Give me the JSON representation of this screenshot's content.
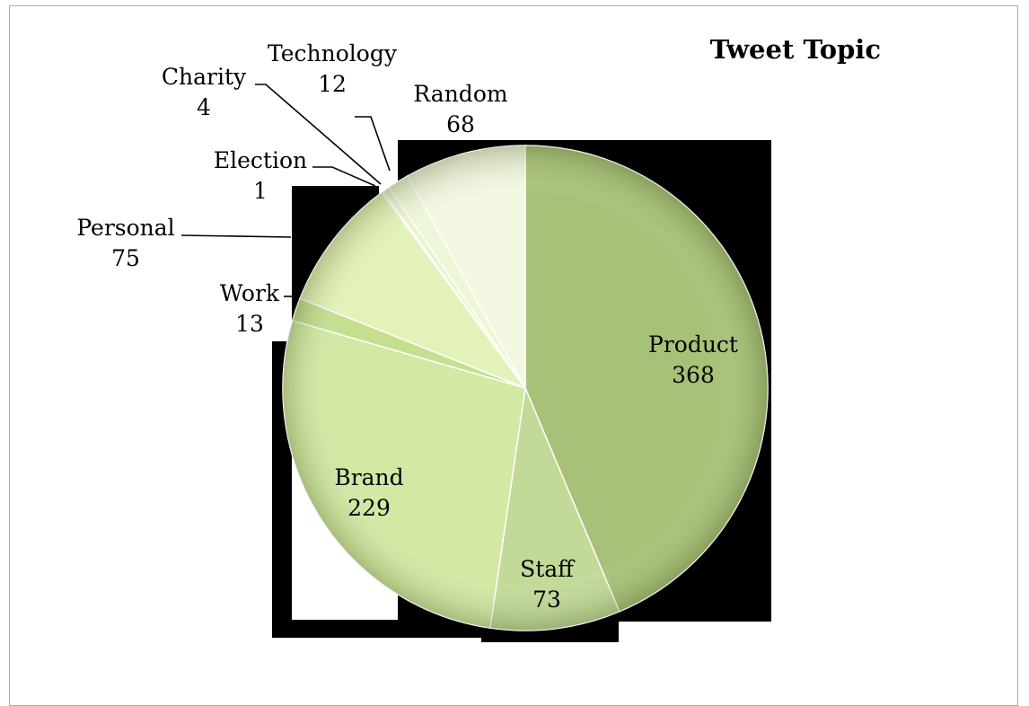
{
  "chart_data": {
    "type": "pie",
    "title": "Tweet Topic",
    "slices": [
      {
        "label": "Product",
        "value": 368
      },
      {
        "label": "Staff",
        "value": 73
      },
      {
        "label": "Brand",
        "value": 229
      },
      {
        "label": "Work",
        "value": 13
      },
      {
        "label": "Personal",
        "value": 75
      },
      {
        "label": "Election",
        "value": 1
      },
      {
        "label": "Charity",
        "value": 4
      },
      {
        "label": "Technology",
        "value": 12
      },
      {
        "label": "Random",
        "value": 68
      }
    ],
    "colors": [
      "#a8c178",
      "#c2d998",
      "#d2e8a3",
      "#c4df8e",
      "#e3f2b8",
      "#e9f4c9",
      "#eaf3d0",
      "#eef6d8",
      "#f1f7e0"
    ],
    "artifact_color": "#000000",
    "legend": "none",
    "data_labels": "category-and-value"
  }
}
